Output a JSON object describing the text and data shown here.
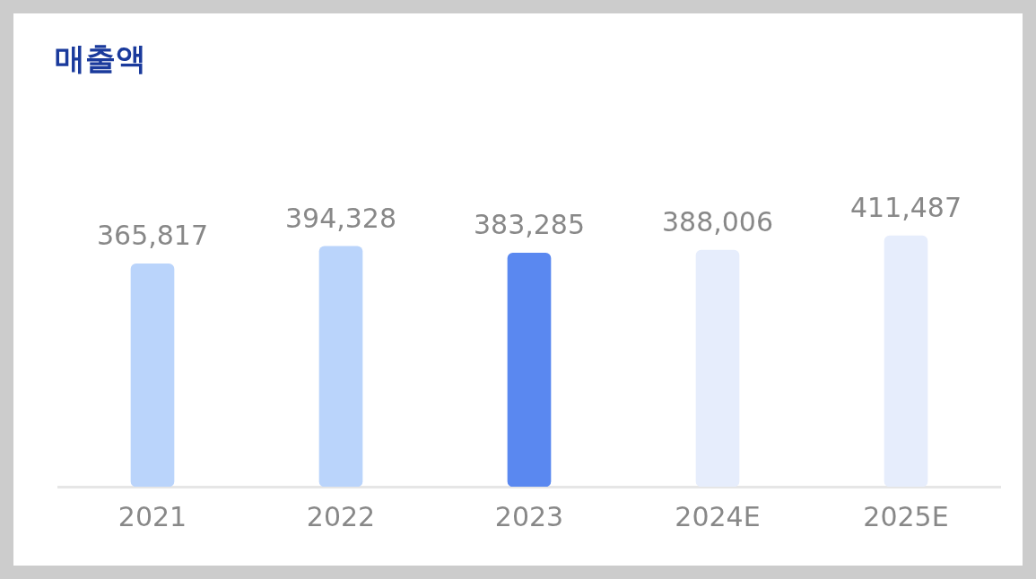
{
  "chart_data": {
    "type": "bar",
    "title": "매출액",
    "categories": [
      "2021",
      "2022",
      "2023",
      "2024E",
      "2025E"
    ],
    "values": [
      365817,
      394328,
      383285,
      388006,
      411487
    ],
    "value_labels": [
      "365,817",
      "394,328",
      "383,285",
      "388,006",
      "411,487"
    ],
    "colors": [
      "#bad4fb",
      "#bad4fb",
      "#5a88f0",
      "#e6edfc",
      "#e6edfc"
    ],
    "grid": false,
    "legend": false
  }
}
